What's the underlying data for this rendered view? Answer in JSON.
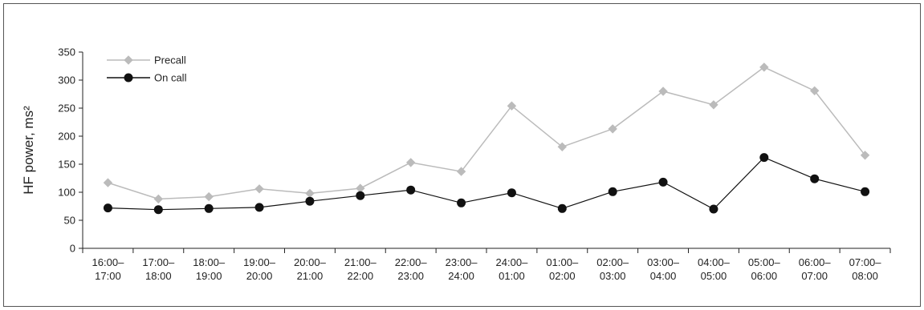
{
  "chart_data": {
    "type": "line",
    "ylabel": "HF power, ms²",
    "ylim": [
      0,
      350
    ],
    "yticks": [
      0,
      50,
      100,
      150,
      200,
      250,
      300,
      350
    ],
    "categories": [
      [
        "16:00–",
        "17:00"
      ],
      [
        "17:00–",
        "18:00"
      ],
      [
        "18:00–",
        "19:00"
      ],
      [
        "19:00–",
        "20:00"
      ],
      [
        "20:00–",
        "21:00"
      ],
      [
        "21:00–",
        "22:00"
      ],
      [
        "22:00–",
        "23:00"
      ],
      [
        "23:00–",
        "24:00"
      ],
      [
        "24:00–",
        "01:00"
      ],
      [
        "01:00–",
        "02:00"
      ],
      [
        "02:00–",
        "03:00"
      ],
      [
        "03:00–",
        "04:00"
      ],
      [
        "04:00–",
        "05:00"
      ],
      [
        "05:00–",
        "06:00"
      ],
      [
        "06:00–",
        "07:00"
      ],
      [
        "07:00–",
        "08:00"
      ]
    ],
    "series": [
      {
        "name": "Precall",
        "marker": "diamond",
        "color": "#bbbbbb",
        "values": [
          117,
          88,
          92,
          106,
          98,
          107,
          153,
          137,
          254,
          181,
          213,
          280,
          256,
          323,
          281,
          166
        ]
      },
      {
        "name": "On call",
        "marker": "circle",
        "color": "#111111",
        "values": [
          72,
          69,
          71,
          73,
          84,
          94,
          104,
          81,
          99,
          71,
          101,
          118,
          70,
          162,
          124,
          101
        ]
      }
    ],
    "grid": false,
    "legend_position": "top-left"
  }
}
